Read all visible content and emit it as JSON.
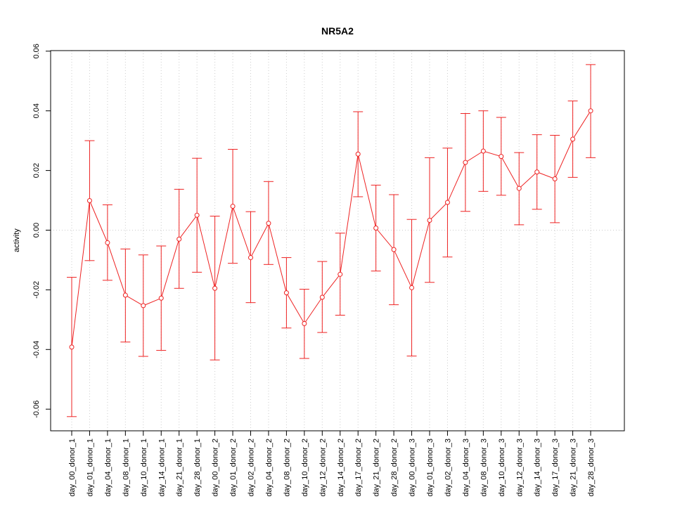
{
  "chart_data": {
    "type": "line",
    "title": "NR5A2",
    "xlabel": "",
    "ylabel": "activity",
    "ylim": [
      -0.067,
      0.061
    ],
    "yticks": [
      -0.06,
      -0.04,
      -0.02,
      0.0,
      0.02,
      0.04,
      0.06
    ],
    "ytick_labels": [
      "-0.06",
      "-0.04",
      "-0.02",
      "0.00",
      "0.02",
      "0.04",
      "0.06"
    ],
    "grid": true,
    "colors": {
      "series": "#ee2222",
      "grid": "#cccccc",
      "axis": "#000000"
    },
    "categories": [
      "day_00_donor_1",
      "day_01_donor_1",
      "day_04_donor_1",
      "day_08_donor_1",
      "day_10_donor_1",
      "day_14_donor_1",
      "day_21_donor_1",
      "day_28_donor_1",
      "day_00_donor_2",
      "day_01_donor_2",
      "day_02_donor_2",
      "day_04_donor_2",
      "day_08_donor_2",
      "day_10_donor_2",
      "day_12_donor_2",
      "day_14_donor_2",
      "day_17_donor_2",
      "day_21_donor_2",
      "day_28_donor_2",
      "day_00_donor_3",
      "day_01_donor_3",
      "day_02_donor_3",
      "day_04_donor_3",
      "day_08_donor_3",
      "day_10_donor_3",
      "day_12_donor_3",
      "day_14_donor_3",
      "day_17_donor_3",
      "day_21_donor_3",
      "day_28_donor_3"
    ],
    "series": [
      {
        "values": [
          -0.0392,
          0.0099,
          -0.0042,
          -0.0218,
          -0.0253,
          -0.0228,
          -0.003,
          0.005,
          -0.0195,
          0.008,
          -0.0092,
          0.0023,
          -0.021,
          -0.0313,
          -0.0225,
          -0.0148,
          0.0255,
          0.0007,
          -0.0065,
          -0.0193,
          0.0033,
          0.0093,
          0.0227,
          0.0265,
          0.0247,
          0.014,
          0.0195,
          0.0172,
          0.0305,
          0.04
        ],
        "upper": [
          -0.0158,
          0.03,
          0.0085,
          -0.0063,
          -0.0083,
          -0.0053,
          0.0137,
          0.0241,
          0.0047,
          0.0271,
          0.0062,
          0.0163,
          -0.0092,
          -0.0198,
          -0.0105,
          -0.001,
          0.0397,
          0.0151,
          0.0119,
          0.0036,
          0.0243,
          0.0275,
          0.0391,
          0.04,
          0.0378,
          0.026,
          0.032,
          0.0318,
          0.0433,
          0.0555
        ],
        "lower": [
          -0.0625,
          -0.0102,
          -0.0168,
          -0.0375,
          -0.0423,
          -0.0403,
          -0.0195,
          -0.0141,
          -0.0435,
          -0.0111,
          -0.0243,
          -0.0115,
          -0.0328,
          -0.043,
          -0.0343,
          -0.0285,
          0.0112,
          -0.0137,
          -0.025,
          -0.0422,
          -0.0175,
          -0.009,
          0.0063,
          0.013,
          0.0117,
          0.0018,
          0.007,
          0.0025,
          0.0177,
          0.0243
        ]
      }
    ]
  }
}
